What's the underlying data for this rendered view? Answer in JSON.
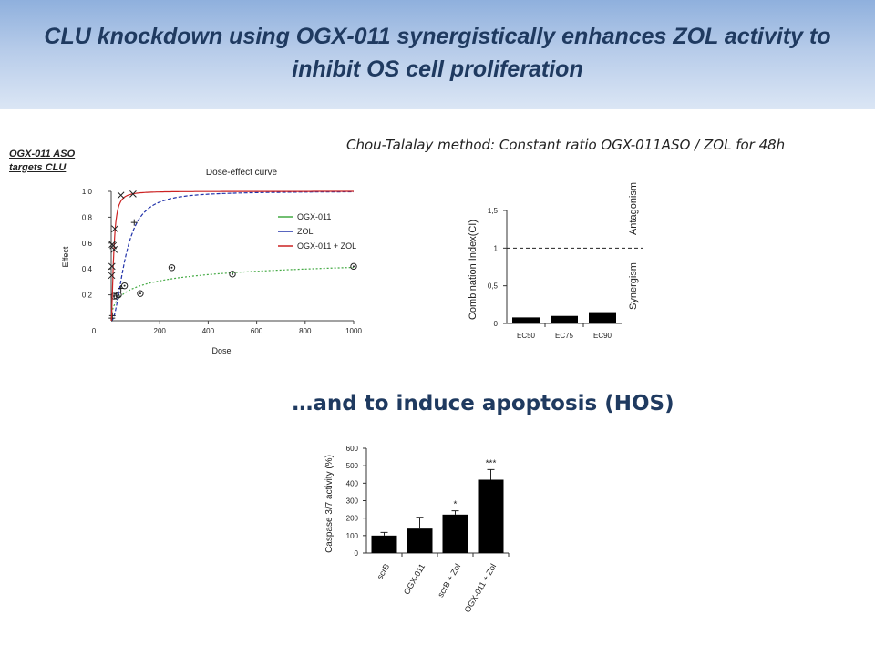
{
  "header": {
    "title": "CLU knockdown using OGX-011 synergistically enhances ZOL activity to inhibit OS cell proliferation",
    "background_color": "#b6cbe9",
    "title_color": "#1f3a60"
  },
  "subtitle": "Chou-Talalay method: Constant ratio OGX-011ASO / ZOL for 48h",
  "aso_label": "OGX-011 ASO targets CLU",
  "apoptosis_heading": "…and to induce apoptosis (HOS)",
  "chart_data": [
    {
      "id": "dose-effect",
      "type": "scatter",
      "title": "Dose-effect curve",
      "xlabel": "Dose",
      "ylabel": "Effect",
      "xlim": [
        0,
        1000
      ],
      "ylim": [
        0,
        1.0
      ],
      "x_ticks": [
        200,
        400,
        600,
        800,
        1000
      ],
      "y_ticks": [
        0.2,
        0.4,
        0.6,
        0.8,
        1.0
      ],
      "origin_label": "0",
      "grid": false,
      "legend_position": "center-right",
      "series": [
        {
          "name": "OGX-011",
          "color": "#44aa44",
          "marker": "circle-dot",
          "curve": {
            "dm": 120,
            "m": 0.55,
            "max": 0.54
          },
          "points": [
            [
              12,
              0.19
            ],
            [
              22,
              0.19
            ],
            [
              30,
              0.2
            ],
            [
              55,
              0.27
            ],
            [
              120,
              0.21
            ],
            [
              250,
              0.41
            ],
            [
              500,
              0.36
            ],
            [
              1000,
              0.42
            ]
          ]
        },
        {
          "name": "ZOL",
          "color": "#2233aa",
          "marker": "plus",
          "curve": {
            "dm": 60,
            "m": 2.0,
            "max": 1.0
          },
          "points": [
            [
              3,
              0.02
            ],
            [
              5,
              0.04
            ],
            [
              40,
              0.25
            ],
            [
              95,
              0.76
            ]
          ]
        },
        {
          "name": "OGX-011 + ZOL",
          "color": "#cc2222",
          "marker": "x",
          "curve": {
            "dm": 10,
            "m": 1.8,
            "max": 1.0
          },
          "points": [
            [
              2,
              0.35
            ],
            [
              3,
              0.42
            ],
            [
              4,
              0.59
            ],
            [
              8,
              0.58
            ],
            [
              12,
              0.55
            ],
            [
              15,
              0.71
            ],
            [
              40,
              0.97
            ],
            [
              90,
              0.98
            ]
          ]
        }
      ]
    },
    {
      "id": "combination-index",
      "type": "bar",
      "ylabel": "Combination Index(CI)",
      "categories": [
        "EC50",
        "EC75",
        "EC90"
      ],
      "values": [
        0.08,
        0.1,
        0.15
      ],
      "ylim": [
        0,
        1.5
      ],
      "y_ticks": [
        0,
        0.5,
        1,
        1.5
      ],
      "y_tick_labels": [
        "0",
        "0,5",
        "1",
        "1,5"
      ],
      "reference_line": 1,
      "region_labels": {
        "above": "Antagonism",
        "below": "Synergism"
      },
      "bar_color": "#000000"
    },
    {
      "id": "caspase",
      "type": "bar",
      "ylabel": "Caspase 3/7 activity (%)",
      "categories": [
        "scrB",
        "OGX-011",
        "scrB + Zol",
        "OGX-011 + Zol"
      ],
      "values": [
        100,
        140,
        220,
        420
      ],
      "errors": [
        18,
        65,
        22,
        58
      ],
      "significance": [
        "",
        "",
        "*",
        "***"
      ],
      "ylim": [
        0,
        600
      ],
      "y_ticks": [
        0,
        100,
        200,
        300,
        400,
        500,
        600
      ],
      "bar_color": "#000000"
    }
  ]
}
